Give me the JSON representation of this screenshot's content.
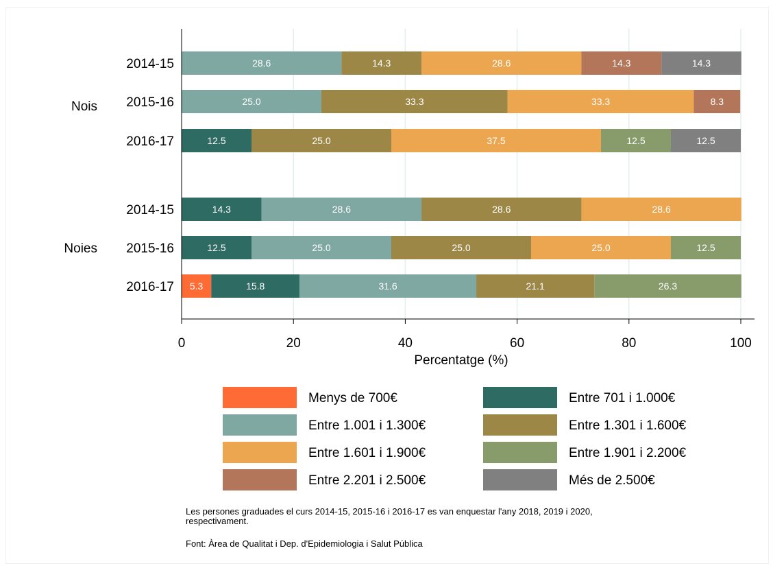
{
  "chart_data": {
    "type": "bar",
    "orientation": "horizontal",
    "stacked": true,
    "xlabel": "Percentatge (%)",
    "xlim": [
      0,
      100
    ],
    "xticks": [
      0,
      20,
      40,
      60,
      80,
      100
    ],
    "grid": true,
    "legend_position": "bottom",
    "groups": [
      {
        "label": "Nois",
        "rows": [
          {
            "label": "2014-15",
            "segments": [
              {
                "cat": 2,
                "value": 28.6,
                "label": "28.6"
              },
              {
                "cat": 3,
                "value": 14.3,
                "label": "14.3"
              },
              {
                "cat": 4,
                "value": 28.6,
                "label": "28.6"
              },
              {
                "cat": 6,
                "value": 14.3,
                "label": "14.3"
              },
              {
                "cat": 7,
                "value": 14.3,
                "label": "14.3"
              }
            ]
          },
          {
            "label": "2015-16",
            "segments": [
              {
                "cat": 2,
                "value": 25.0,
                "label": "25.0"
              },
              {
                "cat": 3,
                "value": 33.3,
                "label": "33.3"
              },
              {
                "cat": 4,
                "value": 33.3,
                "label": "33.3"
              },
              {
                "cat": 6,
                "value": 8.3,
                "label": "8.3"
              }
            ]
          },
          {
            "label": "2016-17",
            "segments": [
              {
                "cat": 1,
                "value": 12.5,
                "label": "12.5"
              },
              {
                "cat": 3,
                "value": 25.0,
                "label": "25.0"
              },
              {
                "cat": 4,
                "value": 37.5,
                "label": "37.5"
              },
              {
                "cat": 5,
                "value": 12.5,
                "label": "12.5"
              },
              {
                "cat": 7,
                "value": 12.5,
                "label": "12.5"
              }
            ]
          }
        ]
      },
      {
        "label": "Noies",
        "rows": [
          {
            "label": "2014-15",
            "segments": [
              {
                "cat": 1,
                "value": 14.3,
                "label": "14.3"
              },
              {
                "cat": 2,
                "value": 28.6,
                "label": "28.6"
              },
              {
                "cat": 3,
                "value": 28.6,
                "label": "28.6"
              },
              {
                "cat": 4,
                "value": 28.6,
                "label": "28.6"
              }
            ]
          },
          {
            "label": "2015-16",
            "segments": [
              {
                "cat": 1,
                "value": 12.5,
                "label": "12.5"
              },
              {
                "cat": 2,
                "value": 25.0,
                "label": "25.0"
              },
              {
                "cat": 3,
                "value": 25.0,
                "label": "25.0"
              },
              {
                "cat": 4,
                "value": 25.0,
                "label": "25.0"
              },
              {
                "cat": 5,
                "value": 12.5,
                "label": "12.5"
              }
            ]
          },
          {
            "label": "2016-17",
            "segments": [
              {
                "cat": 0,
                "value": 5.3,
                "label": "5.3"
              },
              {
                "cat": 1,
                "value": 15.8,
                "label": "15.8"
              },
              {
                "cat": 2,
                "value": 31.6,
                "label": "31.6"
              },
              {
                "cat": 3,
                "value": 21.1,
                "label": "21.1"
              },
              {
                "cat": 5,
                "value": 26.3,
                "label": "26.3"
              }
            ]
          }
        ]
      }
    ],
    "categories": [
      {
        "name": "Menys de 700€",
        "color": "#ff6b35"
      },
      {
        "name": "Entre 701 i 1.000€",
        "color": "#2e6b62"
      },
      {
        "name": "Entre 1.001 i 1.300€",
        "color": "#7fa8a2"
      },
      {
        "name": "Entre  1.301 i 1.600€",
        "color": "#9c8746"
      },
      {
        "name": "Entre 1.601 i 1.900€",
        "color": "#eba64f"
      },
      {
        "name": "Entre 1.901 i 2.200€",
        "color": "#889c6b"
      },
      {
        "name": "Entre 2.201 i 2.500€",
        "color": "#b3765a"
      },
      {
        "name": "Més de 2.500€",
        "color": "#808080"
      }
    ]
  },
  "notes": {
    "line1": "Les persones graduades el curs 2014-15, 2015-16 i 2016-17 es van enquestar l'any 2018, 2019 i 2020,",
    "line2": "respectivament.",
    "source": "Font: Àrea de Qualitat i Dep. d'Epidemiologia i Salut Pública"
  }
}
